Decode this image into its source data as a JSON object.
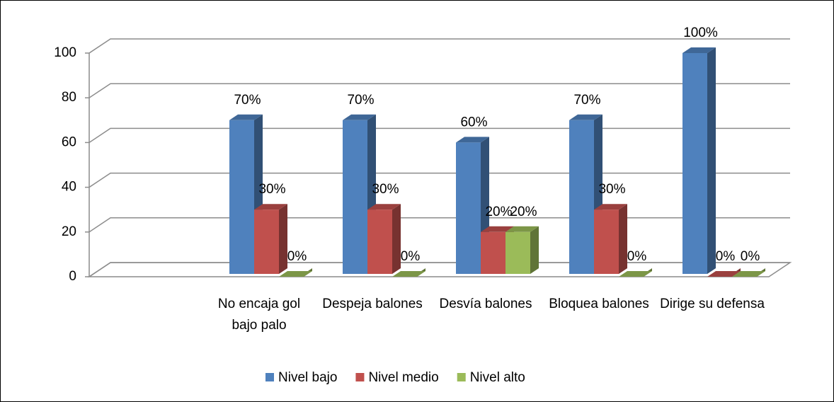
{
  "chart_data": {
    "type": "bar3d",
    "categories": [
      null,
      "No encaja gol bajo palo",
      "Despeja balones",
      "Desvía balones",
      "Bloquea balones",
      "Dirige su defensa"
    ],
    "series": [
      {
        "name": "Nivel bajo",
        "color": "#4f81bd",
        "values": [
          null,
          70,
          70,
          60,
          70,
          100
        ],
        "value_labels": [
          null,
          "70%",
          "70%",
          "60%",
          "70%",
          "100%"
        ]
      },
      {
        "name": "Nivel medio",
        "color": "#c0504d",
        "values": [
          null,
          30,
          30,
          20,
          30,
          0
        ],
        "value_labels": [
          null,
          "30%",
          "30%",
          "20%",
          "30%",
          "0%"
        ]
      },
      {
        "name": "Nivel alto",
        "color": "#9bbb59",
        "values": [
          null,
          0,
          0,
          20,
          0,
          0
        ],
        "value_labels": [
          null,
          "0%",
          "0%",
          "20%",
          "0%",
          "0%"
        ]
      }
    ],
    "ylim": [
      0,
      100
    ],
    "yticks": [
      0,
      20,
      40,
      60,
      80,
      100
    ],
    "grid": true,
    "legend": "bottom"
  }
}
